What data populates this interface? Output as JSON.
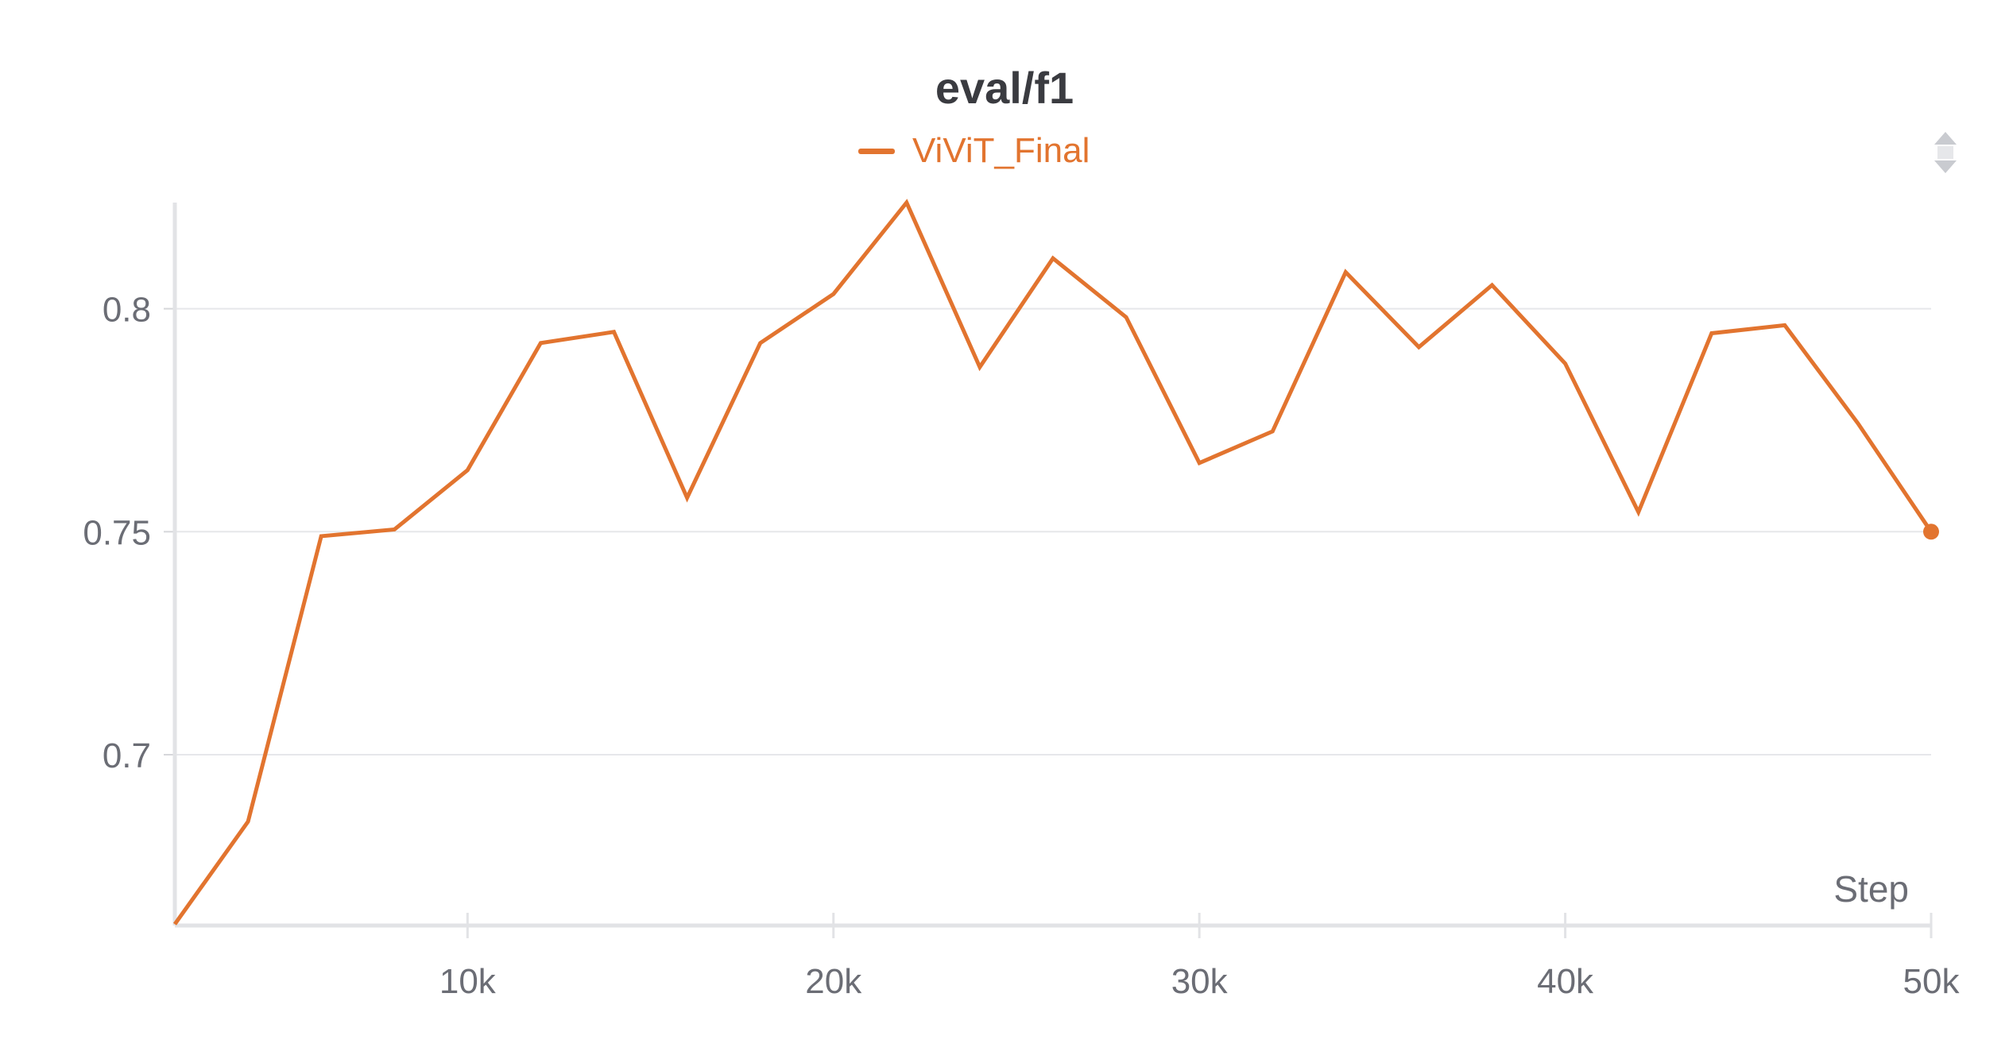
{
  "chart_data": {
    "type": "line",
    "title": "eval/f1",
    "xlabel": "Step",
    "ylabel": "",
    "xlim": [
      2000,
      50000
    ],
    "ylim": [
      0.6617,
      0.8238
    ],
    "x_ticks": [
      10000,
      20000,
      30000,
      40000,
      50000
    ],
    "x_tick_labels": [
      "10k",
      "20k",
      "30k",
      "40k",
      "50k"
    ],
    "y_ticks": [
      0.7,
      0.75,
      0.8
    ],
    "y_tick_labels": [
      "0.7",
      "0.75",
      "0.8"
    ],
    "grid": true,
    "legend_position": "top-center",
    "color": "#e2742f",
    "x": [
      2000,
      4000,
      6000,
      8000,
      10000,
      12000,
      14000,
      16000,
      18000,
      20000,
      22000,
      24000,
      26000,
      28000,
      30000,
      32000,
      34000,
      36000,
      38000,
      40000,
      42000,
      44000,
      46000,
      48000,
      50000
    ],
    "series": [
      {
        "name": "ViViT_Final",
        "values": [
          0.662,
          0.685,
          0.749,
          0.7505,
          0.7638,
          0.7923,
          0.7948,
          0.7576,
          0.7923,
          0.8033,
          0.8238,
          0.7869,
          0.8113,
          0.7981,
          0.7654,
          0.7725,
          0.8082,
          0.7914,
          0.8053,
          0.7877,
          0.7544,
          0.7945,
          0.7963,
          0.7743,
          0.75
        ]
      }
    ]
  }
}
